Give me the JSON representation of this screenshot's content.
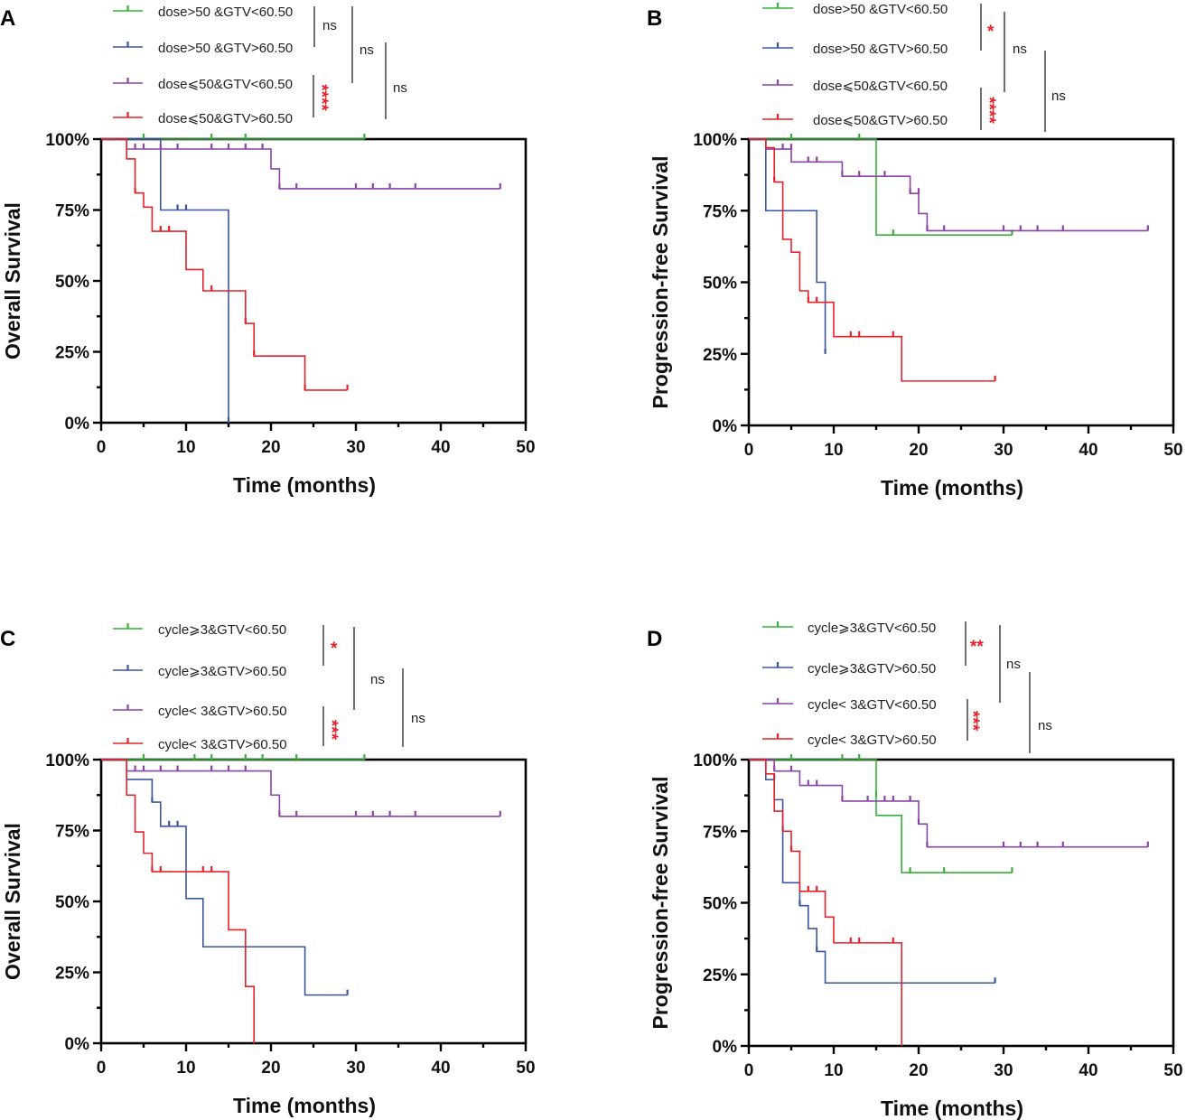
{
  "colors": {
    "green": "#35b23a",
    "blue": "#3b55a5",
    "purple": "#8a44a6",
    "red": "#e8202a",
    "axis": "#000000"
  },
  "chart_data": [
    {
      "panel": "A",
      "type": "line",
      "curve_style": "step",
      "xlabel": "Time (months)",
      "ylabel": "Overall Survival",
      "xlim": [
        0,
        50
      ],
      "ylim": [
        0,
        100
      ],
      "x_ticks": [
        "0",
        "10",
        "20",
        "30",
        "40",
        "50"
      ],
      "y_ticks": [
        "0%",
        "25%",
        "50%",
        "75%",
        "100%"
      ],
      "series": [
        {
          "name": "dose>50 &GTV<60.50",
          "color": "green",
          "steps": [
            [
              0,
              100
            ],
            [
              31,
              100
            ]
          ],
          "censored": [
            [
              5,
              100
            ],
            [
              13,
              100
            ],
            [
              17,
              100
            ],
            [
              31,
              100
            ]
          ]
        },
        {
          "name": "dose>50 &GTV>60.50",
          "color": "blue",
          "steps": [
            [
              0,
              100
            ],
            [
              7,
              75
            ],
            [
              15,
              0
            ]
          ],
          "censored": [
            [
              9,
              75
            ],
            [
              10,
              75
            ],
            [
              15,
              0
            ]
          ]
        },
        {
          "name": "dose⩽50&GTV<60.50",
          "color": "purple",
          "steps": [
            [
              0,
              100
            ],
            [
              3,
              96.5
            ],
            [
              20,
              89.5
            ],
            [
              21,
              82.5
            ],
            [
              47,
              82.5
            ]
          ],
          "censored": [
            [
              4,
              96.5
            ],
            [
              5,
              96.5
            ],
            [
              7,
              96.5
            ],
            [
              9,
              96.5
            ],
            [
              13,
              96.5
            ],
            [
              15,
              96.5
            ],
            [
              17,
              96.5
            ],
            [
              19,
              96.5
            ],
            [
              21,
              82.5
            ],
            [
              23,
              82.5
            ],
            [
              30,
              82.5
            ],
            [
              32,
              82.5
            ],
            [
              34,
              82.5
            ],
            [
              37,
              82.5
            ],
            [
              47,
              82.5
            ]
          ]
        },
        {
          "name": "dose⩽50&GTV>60.50",
          "color": "red",
          "steps": [
            [
              0,
              100
            ],
            [
              3,
              93
            ],
            [
              4,
              81
            ],
            [
              5,
              76
            ],
            [
              6,
              67.5
            ],
            [
              10,
              54
            ],
            [
              12,
              46.5
            ],
            [
              17,
              35
            ],
            [
              18,
              23.5
            ],
            [
              24,
              11.5
            ],
            [
              29,
              11.5
            ]
          ],
          "censored": [
            [
              4,
              81
            ],
            [
              7,
              67.5
            ],
            [
              8,
              67.5
            ],
            [
              13,
              46.5
            ],
            [
              17,
              35
            ],
            [
              18,
              23.5
            ],
            [
              24,
              11.5
            ],
            [
              29,
              11.5
            ]
          ]
        }
      ],
      "legend": [
        "dose>50 &GTV<60.50",
        "dose>50 &GTV>60.50",
        "dose⩽50&GTV<60.50",
        "dose⩽50&GTV>60.50"
      ],
      "significance": [
        "ns",
        "****",
        "ns",
        "ns"
      ]
    },
    {
      "panel": "B",
      "type": "line",
      "curve_style": "step",
      "xlabel": "Time (months)",
      "ylabel": "Progression-free Survival",
      "xlim": [
        0,
        50
      ],
      "ylim": [
        0,
        100
      ],
      "x_ticks": [
        "0",
        "10",
        "20",
        "30",
        "40",
        "50"
      ],
      "y_ticks": [
        "0%",
        "25%",
        "50%",
        "75%",
        "100%"
      ],
      "series": [
        {
          "name": "dose>50 &GTV<60.50",
          "color": "green",
          "steps": [
            [
              0,
              100
            ],
            [
              15,
              66.5
            ],
            [
              31,
              66.5
            ]
          ],
          "censored": [
            [
              5,
              100
            ],
            [
              13,
              100
            ],
            [
              17,
              66.5
            ],
            [
              31,
              66.5
            ]
          ]
        },
        {
          "name": "dose>50 &GTV>60.50",
          "color": "blue",
          "steps": [
            [
              0,
              100
            ],
            [
              2,
              75
            ],
            [
              8,
              50
            ],
            [
              9,
              25
            ]
          ],
          "censored": [
            [
              9,
              25
            ]
          ]
        },
        {
          "name": "dose⩽50&GTV<60.50",
          "color": "purple",
          "steps": [
            [
              0,
              100
            ],
            [
              2,
              96.5
            ],
            [
              5,
              92
            ],
            [
              8,
              92
            ],
            [
              11,
              87
            ],
            [
              19,
              81
            ],
            [
              20,
              74
            ],
            [
              21,
              68
            ],
            [
              47,
              68
            ]
          ],
          "censored": [
            [
              4,
              96.5
            ],
            [
              5,
              96.5
            ],
            [
              7,
              92
            ],
            [
              8,
              92
            ],
            [
              11,
              87
            ],
            [
              13,
              87
            ],
            [
              16,
              87
            ],
            [
              19,
              81
            ],
            [
              20,
              81
            ],
            [
              21,
              68
            ],
            [
              23,
              68
            ],
            [
              30,
              68
            ],
            [
              32,
              68
            ],
            [
              34,
              68
            ],
            [
              37,
              68
            ],
            [
              47,
              68
            ]
          ]
        },
        {
          "name": "dose⩽50&GTV>60.50",
          "color": "red",
          "steps": [
            [
              0,
              100
            ],
            [
              2,
              97
            ],
            [
              3,
              85
            ],
            [
              4,
              65
            ],
            [
              5,
              60.5
            ],
            [
              6,
              47
            ],
            [
              7,
              43
            ],
            [
              10,
              37
            ],
            [
              10,
              31
            ],
            [
              18,
              15.5
            ],
            [
              29,
              15.5
            ]
          ],
          "censored": [
            [
              3,
              85
            ],
            [
              7,
              43
            ],
            [
              8,
              43
            ],
            [
              12,
              31
            ],
            [
              13,
              31
            ],
            [
              17,
              31
            ],
            [
              29,
              15.5
            ]
          ]
        }
      ],
      "legend": [
        "dose>50 &GTV<60.50",
        "dose>50 &GTV>60.50",
        "dose⩽50&GTV<60.50",
        "dose⩽50&GTV>60.50"
      ],
      "significance": [
        "*",
        "****",
        "ns",
        "ns"
      ]
    },
    {
      "panel": "C",
      "type": "line",
      "curve_style": "step",
      "xlabel": "Time (months)",
      "ylabel": "Overall Survival",
      "xlim": [
        0,
        50
      ],
      "ylim": [
        0,
        100
      ],
      "x_ticks": [
        "0",
        "10",
        "20",
        "30",
        "40",
        "50"
      ],
      "y_ticks": [
        "0%",
        "25%",
        "50%",
        "75%",
        "100%"
      ],
      "series": [
        {
          "name": "cycle⩾3&GTV<60.50",
          "color": "green",
          "steps": [
            [
              0,
              100
            ],
            [
              31,
              100
            ]
          ],
          "censored": [
            [
              5,
              100
            ],
            [
              11,
              100
            ],
            [
              13,
              100
            ],
            [
              17,
              100
            ],
            [
              19,
              100
            ],
            [
              23,
              100
            ],
            [
              31,
              100
            ]
          ]
        },
        {
          "name": "cycle⩾3&GTV>60.50",
          "color": "blue",
          "steps": [
            [
              0,
              100
            ],
            [
              3,
              93
            ],
            [
              6,
              85
            ],
            [
              7,
              76.5
            ],
            [
              10,
              51
            ],
            [
              12,
              34
            ],
            [
              24,
              17
            ],
            [
              29,
              17
            ]
          ],
          "censored": [
            [
              6,
              85
            ],
            [
              8,
              76.5
            ],
            [
              9,
              76.5
            ],
            [
              29,
              17
            ]
          ]
        },
        {
          "name": "cycle< 3&GTV>60.50",
          "color": "purple",
          "steps": [
            [
              0,
              100
            ],
            [
              3,
              96
            ],
            [
              20,
              87.5
            ],
            [
              21,
              80
            ],
            [
              47,
              80
            ]
          ],
          "censored": [
            [
              4,
              96
            ],
            [
              5,
              96
            ],
            [
              7,
              96
            ],
            [
              9,
              96
            ],
            [
              13,
              96
            ],
            [
              15,
              96
            ],
            [
              17,
              96
            ],
            [
              21,
              80
            ],
            [
              23,
              80
            ],
            [
              30,
              80
            ],
            [
              32,
              80
            ],
            [
              34,
              80
            ],
            [
              37,
              80
            ],
            [
              47,
              80
            ]
          ]
        },
        {
          "name": "cycle< 3&GTV>60.50",
          "color": "red",
          "steps": [
            [
              0,
              100
            ],
            [
              3,
              87.5
            ],
            [
              4,
              74.5
            ],
            [
              5,
              67
            ],
            [
              6,
              60.5
            ],
            [
              15,
              40
            ],
            [
              17,
              20
            ],
            [
              18,
              0
            ]
          ],
          "censored": [
            [
              6,
              60.5
            ],
            [
              7,
              60.5
            ],
            [
              12,
              60.5
            ],
            [
              13,
              60.5
            ]
          ]
        }
      ],
      "legend": [
        "cycle⩾3&GTV<60.50",
        "cycle⩾3&GTV>60.50",
        "cycle< 3&GTV>60.50",
        "cycle< 3&GTV>60.50"
      ],
      "significance": [
        "*",
        "***",
        "ns",
        "ns"
      ]
    },
    {
      "panel": "D",
      "type": "line",
      "curve_style": "step",
      "xlabel": "Time (months)",
      "ylabel": "Progression-free Survival",
      "xlim": [
        0,
        50
      ],
      "ylim": [
        0,
        100
      ],
      "x_ticks": [
        "0",
        "10",
        "20",
        "30",
        "40",
        "50"
      ],
      "y_ticks": [
        "0%",
        "25%",
        "50%",
        "75%",
        "100%"
      ],
      "series": [
        {
          "name": "cycle⩾3&GTV<60.50",
          "color": "green",
          "steps": [
            [
              0,
              100
            ],
            [
              15,
              80.5
            ],
            [
              18,
              60.5
            ],
            [
              31,
              60.5
            ]
          ],
          "censored": [
            [
              5,
              100
            ],
            [
              11,
              100
            ],
            [
              13,
              100
            ],
            [
              15,
              87
            ],
            [
              19,
              60.5
            ],
            [
              23,
              60.5
            ],
            [
              31,
              60.5
            ]
          ]
        },
        {
          "name": "cycle⩾3&GTV>60.50",
          "color": "blue",
          "steps": [
            [
              0,
              100
            ],
            [
              2,
              93
            ],
            [
              3,
              86
            ],
            [
              4,
              57
            ],
            [
              6,
              49
            ],
            [
              7,
              41
            ],
            [
              8,
              33
            ],
            [
              9,
              22
            ],
            [
              29,
              22
            ]
          ],
          "censored": [
            [
              3,
              93
            ],
            [
              4,
              75
            ],
            [
              6,
              49
            ],
            [
              8,
              33
            ],
            [
              29,
              22
            ]
          ]
        },
        {
          "name": "cycle< 3&GTV<60.50",
          "color": "purple",
          "steps": [
            [
              0,
              100
            ],
            [
              3,
              96
            ],
            [
              6,
              91
            ],
            [
              11,
              85.5
            ],
            [
              20,
              77.5
            ],
            [
              21,
              69.5
            ],
            [
              47,
              69.5
            ]
          ],
          "censored": [
            [
              3,
              96
            ],
            [
              5,
              96
            ],
            [
              7,
              91
            ],
            [
              8,
              91
            ],
            [
              11,
              85.5
            ],
            [
              14,
              85.5
            ],
            [
              16,
              85.5
            ],
            [
              17,
              85.5
            ],
            [
              19,
              85.5
            ],
            [
              20,
              77.5
            ],
            [
              21,
              69.5
            ],
            [
              30,
              69.5
            ],
            [
              32,
              69.5
            ],
            [
              34,
              69.5
            ],
            [
              37,
              69.5
            ],
            [
              47,
              69.5
            ]
          ]
        },
        {
          "name": "cycle< 3&GTV>60.50",
          "color": "red",
          "steps": [
            [
              0,
              100
            ],
            [
              2,
              95
            ],
            [
              3,
              82
            ],
            [
              4,
              75
            ],
            [
              5,
              68
            ],
            [
              6,
              54
            ],
            [
              9,
              45
            ],
            [
              10,
              36
            ],
            [
              18,
              0
            ]
          ],
          "censored": [
            [
              5,
              68
            ],
            [
              7,
              54
            ],
            [
              8,
              54
            ],
            [
              12,
              36
            ],
            [
              13,
              36
            ],
            [
              17,
              36
            ]
          ]
        }
      ],
      "legend": [
        "cycle⩾3&GTV<60.50",
        "cycle⩾3&GTV>60.50",
        "cycle< 3&GTV<60.50",
        "cycle< 3&GTV>60.50"
      ],
      "significance": [
        "**",
        "***",
        "ns",
        "ns"
      ]
    }
  ]
}
